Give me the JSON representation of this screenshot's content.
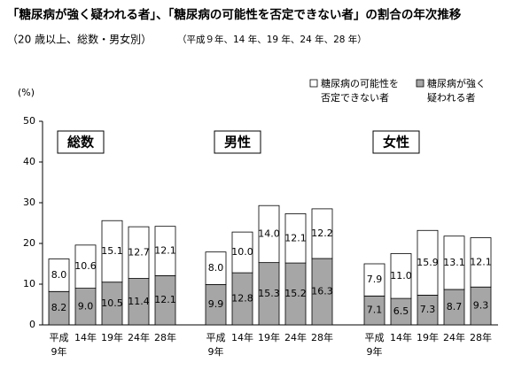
{
  "chart_data": {
    "type": "stacked_bar",
    "title": "「糖尿病が強く疑われる者」、「糖尿病の可能性を否定できない者」の割合の年次推移",
    "subtitle": [
      "（20 歳以上、総数・男女別）",
      "（平成９年、14 年、19 年、24 年、28 年）"
    ],
    "y_label": "(%)",
    "groups": [
      {
        "name": "総数",
        "categories": [
          "平成\n9年",
          "14年",
          "19年",
          "24年",
          "28年"
        ]
      },
      {
        "name": "男性",
        "categories": [
          "平成\n9年",
          "14年",
          "19年",
          "24年",
          "28年"
        ]
      },
      {
        "name": "女性",
        "categories": [
          "平成\n9年",
          "14年",
          "19年",
          "24年",
          "28年"
        ]
      }
    ],
    "series": [
      {
        "name": "糖尿病が強く\n疑われる者",
        "color": "#a6a6a6",
        "values": [
          [
            8.2,
            9.0,
            10.5,
            11.4,
            12.1
          ],
          [
            9.9,
            12.8,
            15.3,
            15.2,
            16.3
          ],
          [
            7.1,
            6.5,
            7.3,
            8.7,
            9.3
          ]
        ],
        "value_labels": [
          [
            "8.2",
            "9.0",
            "10.5",
            "11.4",
            "12.1"
          ],
          [
            "9.9",
            "12.8",
            "15.3",
            "15.2",
            "16.3"
          ],
          [
            "7.1",
            "6.5",
            "7.3",
            "8.7",
            "9.3"
          ]
        ]
      },
      {
        "name": "糖尿病の可能性を\n否定できない者",
        "color": "#ffffff",
        "values": [
          [
            8.0,
            10.6,
            15.1,
            12.7,
            12.1
          ],
          [
            8.0,
            10.0,
            14.0,
            12.1,
            12.2
          ],
          [
            7.9,
            11.0,
            15.9,
            13.1,
            12.1
          ]
        ],
        "value_labels": [
          [
            "8.0",
            "10.6",
            "15.1",
            "12.7",
            "12.1"
          ],
          [
            "8.0",
            "10.0",
            "14.0",
            "12.1",
            "12.2"
          ],
          [
            "7.9",
            "11.0",
            "15.9",
            "13.1",
            "12.1"
          ]
        ]
      }
    ],
    "ylim": [
      0,
      50
    ],
    "yticks": [
      0,
      10,
      20,
      30,
      40,
      50
    ],
    "grid": false
  }
}
